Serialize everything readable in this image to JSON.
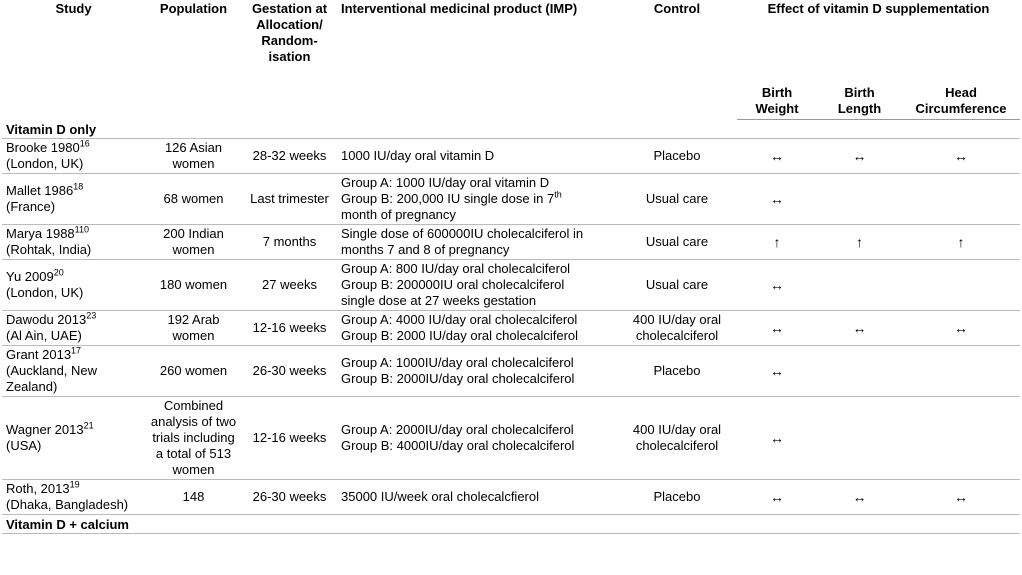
{
  "table": {
    "headers": [
      "Study",
      "Population",
      "Gestation at Allocation/ Random-isation",
      "Interventional medicinal product (IMP)",
      "Control",
      "Effect of vitamin D supplementation"
    ],
    "subheaders": [
      "Birth Weight",
      "Birth Length",
      "Head Circumference"
    ],
    "sections": [
      {
        "title": "Vitamin D only",
        "rows": [
          {
            "study": {
              "name": "Brooke 1980",
              "ref": "16",
              "location": "(London, UK)"
            },
            "population": "126 Asian women",
            "gestation": "28-32 weeks",
            "imp": [
              "1000 IU/day oral vitamin D"
            ],
            "control": "Placebo",
            "effects": [
              "↔",
              "↔",
              "↔"
            ]
          },
          {
            "study": {
              "name": "Mallet 1986",
              "ref": "18",
              "location": "(France)"
            },
            "population": "68 women",
            "gestation": "Last trimester",
            "imp": [
              "Group A: 1000 IU/day oral vitamin D",
              {
                "text": "Group B: 200,000 IU single dose in 7",
                "sup": "th"
              },
              "month of pregnancy"
            ],
            "control": "Usual care",
            "effects": [
              "↔",
              null,
              null
            ]
          },
          {
            "study": {
              "name": "Marya 1988",
              "ref": "110",
              "location": "(Rohtak, India)"
            },
            "population": "200 Indian women",
            "gestation": "7 months",
            "imp": [
              "Single dose of 600000IU cholecalciferol in",
              "months 7 and 8 of pregnancy"
            ],
            "control": "Usual care",
            "effects": [
              "↑",
              "↑",
              "↑"
            ]
          },
          {
            "study": {
              "name": "Yu 2009",
              "ref": "20",
              "location": "(London, UK)"
            },
            "population": "180 women",
            "gestation": "27 weeks",
            "imp": [
              "Group A: 800 IU/day oral cholecalciferol",
              "Group B: 200000IU oral cholecalciferol",
              "single dose at 27 weeks gestation"
            ],
            "control": "Usual care",
            "effects": [
              "↔",
              null,
              null
            ]
          },
          {
            "study": {
              "name": "Dawodu 2013",
              "ref": "23",
              "location": "(Al Ain, UAE)"
            },
            "population": "192 Arab women",
            "gestation": "12-16 weeks",
            "imp": [
              "Group A: 4000 IU/day oral cholecalciferol",
              "Group B: 2000 IU/day oral cholecalciferol"
            ],
            "control": "400 IU/day oral cholecalciferol",
            "effects": [
              "↔",
              "↔",
              "↔"
            ]
          },
          {
            "study": {
              "name": "Grant 2013",
              "ref": "17",
              "location": "(Auckland, New Zealand)"
            },
            "population": "260 women",
            "gestation": "26-30 weeks",
            "imp": [
              "Group A: 1000IU/day oral cholecalciferol",
              "Group B: 2000IU/day oral cholecalciferol"
            ],
            "control": "Placebo",
            "effects": [
              "↔",
              null,
              null
            ]
          },
          {
            "study": {
              "name": "Wagner 2013",
              "ref": "21",
              "location": "(USA)"
            },
            "population": "Combined analysis of two trials including a total of 513 women",
            "gestation": "12-16 weeks",
            "imp": [
              "Group A: 2000IU/day oral cholecalciferol",
              "Group B: 4000IU/day oral cholecalciferol"
            ],
            "control": "400 IU/day oral cholecalciferol",
            "effects": [
              "↔",
              null,
              null
            ]
          },
          {
            "study": {
              "name": "Roth, 2013",
              "ref": "19",
              "location": "(Dhaka, Bangladesh)"
            },
            "population": "148",
            "gestation": "26-30 weeks",
            "imp": [
              "35000 IU/week oral cholecalcfierol"
            ],
            "control": "Placebo",
            "effects": [
              "↔",
              "↔",
              "↔"
            ]
          }
        ]
      },
      {
        "title": "Vitamin D + calcium"
      }
    ]
  }
}
